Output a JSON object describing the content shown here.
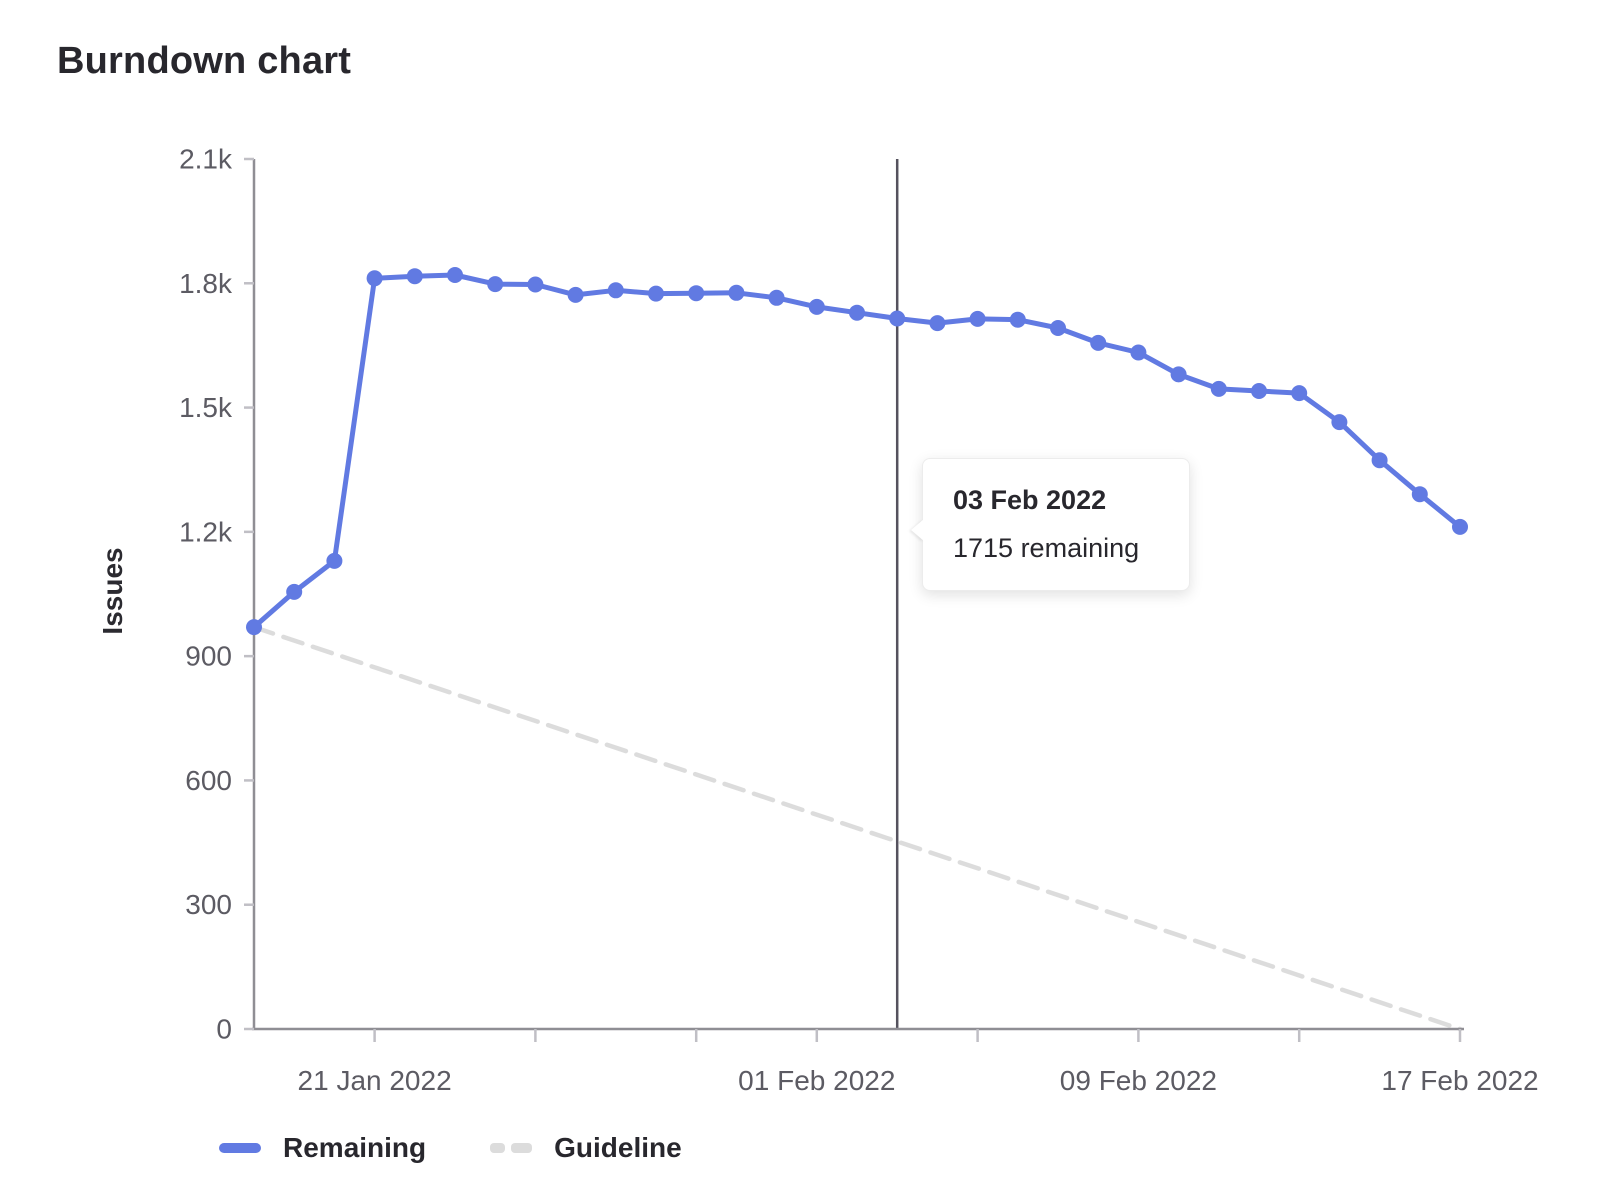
{
  "title": "Burndown chart",
  "chart_data": {
    "type": "line",
    "title": "Burndown chart",
    "xlabel": "",
    "ylabel": "Issues",
    "ylim": [
      0,
      2100
    ],
    "grid": false,
    "legend_position": "bottom-left",
    "yticks": [
      {
        "value": 2100,
        "label": "2.1k"
      },
      {
        "value": 1800,
        "label": "1.8k"
      },
      {
        "value": 1500,
        "label": "1.5k"
      },
      {
        "value": 1200,
        "label": "1.2k"
      },
      {
        "value": 900,
        "label": "900"
      },
      {
        "value": 600,
        "label": "600"
      },
      {
        "value": 300,
        "label": "300"
      },
      {
        "value": 0,
        "label": "0"
      }
    ],
    "x_dates": [
      "18 Jan 2022",
      "19 Jan 2022",
      "20 Jan 2022",
      "21 Jan 2022",
      "22 Jan 2022",
      "23 Jan 2022",
      "24 Jan 2022",
      "25 Jan 2022",
      "26 Jan 2022",
      "27 Jan 2022",
      "28 Jan 2022",
      "29 Jan 2022",
      "30 Jan 2022",
      "31 Jan 2022",
      "01 Feb 2022",
      "02 Feb 2022",
      "03 Feb 2022",
      "04 Feb 2022",
      "05 Feb 2022",
      "06 Feb 2022",
      "07 Feb 2022",
      "08 Feb 2022",
      "09 Feb 2022",
      "10 Feb 2022",
      "11 Feb 2022",
      "12 Feb 2022",
      "13 Feb 2022",
      "14 Feb 2022",
      "15 Feb 2022",
      "16 Feb 2022",
      "17 Feb 2022"
    ],
    "xticks": [
      {
        "index": 3,
        "label": "21 Jan 2022"
      },
      {
        "index": 7,
        "label": ""
      },
      {
        "index": 11,
        "label": ""
      },
      {
        "index": 14,
        "label": "01 Feb 2022"
      },
      {
        "index": 18,
        "label": ""
      },
      {
        "index": 22,
        "label": "09 Feb 2022"
      },
      {
        "index": 26,
        "label": ""
      },
      {
        "index": 30,
        "label": "17 Feb 2022"
      }
    ],
    "series": [
      {
        "name": "Remaining",
        "style": "solid",
        "color": "#617ae2",
        "values": [
          970,
          1055,
          1130,
          1812,
          1817,
          1820,
          1798,
          1797,
          1772,
          1783,
          1775,
          1776,
          1777,
          1765,
          1743,
          1729,
          1715,
          1704,
          1714,
          1712,
          1692,
          1656,
          1633,
          1580,
          1545,
          1540,
          1535,
          1465,
          1373,
          1291,
          1212
        ]
      },
      {
        "name": "Guideline",
        "style": "dashed",
        "color": "#dcdcdc",
        "endpoints": [
          970,
          0
        ]
      }
    ],
    "today_line": {
      "index": 16,
      "date": "03 Feb 2022",
      "color": "#55525e"
    }
  },
  "tooltip": {
    "title": "03 Feb 2022",
    "body": "1715 remaining"
  },
  "legend": {
    "items": [
      {
        "label": "Remaining",
        "swatch": "solid-line",
        "color": "#617ae2"
      },
      {
        "label": "Guideline",
        "swatch": "dashed-line",
        "color": "#dcdcdc"
      }
    ]
  },
  "colors": {
    "remaining": "#617ae2",
    "guideline": "#dcdcdc",
    "today_line": "#55525e",
    "axis": "#8f8e94",
    "tick": "#c0bfc5",
    "tick_label": "#5c5b63",
    "text": "#28272d"
  }
}
